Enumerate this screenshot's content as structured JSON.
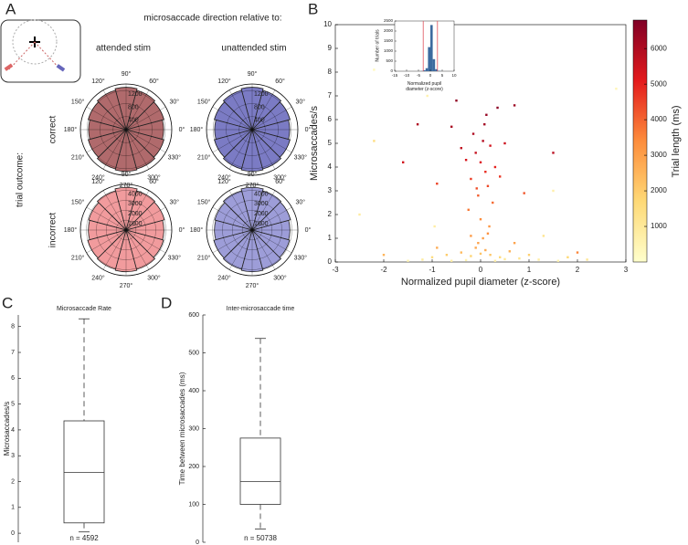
{
  "panel_labels": [
    "A",
    "B",
    "C",
    "D"
  ],
  "panel_a": {
    "header": "microsaccade direction relative to:",
    "columns": [
      "attended stim",
      "unattended stim"
    ],
    "rows": [
      "correct",
      "incorrect"
    ],
    "side_label": "trial outcome:"
  },
  "chart_data": [
    {
      "type": "polar",
      "color": "#b06a6c",
      "theta": [
        0,
        30,
        60,
        90,
        120,
        150,
        180,
        210,
        240,
        270,
        300,
        330
      ],
      "values": [
        1150,
        1200,
        1250,
        1300,
        1250,
        1200,
        1150,
        1200,
        1250,
        1280,
        1250,
        1200
      ],
      "rlim": [
        0,
        1400
      ],
      "rticks": [
        400,
        800,
        1200
      ],
      "thetaticks": [
        {
          "value": 0,
          "label": "0°"
        },
        {
          "value": 30,
          "label": "30°"
        },
        {
          "value": 60,
          "label": "60°"
        },
        {
          "value": 90,
          "label": "90°"
        },
        {
          "value": 120,
          "label": "120°"
        },
        {
          "value": 150,
          "label": "150°"
        },
        {
          "value": 180,
          "label": "180°"
        },
        {
          "value": 210,
          "label": "210°"
        },
        {
          "value": 240,
          "label": "240°"
        },
        {
          "value": 270,
          "label": "270°"
        },
        {
          "value": 300,
          "label": "300°"
        },
        {
          "value": 330,
          "label": "330°"
        }
      ]
    },
    {
      "type": "polar",
      "color": "#7b7bc4",
      "theta": [
        0,
        30,
        60,
        90,
        120,
        150,
        180,
        210,
        240,
        270,
        300,
        330
      ],
      "values": [
        1150,
        1200,
        1250,
        1300,
        1250,
        1200,
        1150,
        1200,
        1250,
        1280,
        1250,
        1200
      ],
      "rlim": [
        0,
        1400
      ],
      "rticks": [
        400,
        800,
        1200
      ],
      "thetaticks": [
        {
          "value": 0,
          "label": "0°"
        },
        {
          "value": 30,
          "label": "30°"
        },
        {
          "value": 60,
          "label": "60°"
        },
        {
          "value": 90,
          "label": "90°"
        },
        {
          "value": 120,
          "label": "120°"
        },
        {
          "value": 150,
          "label": "150°"
        },
        {
          "value": 180,
          "label": "180°"
        },
        {
          "value": 210,
          "label": "210°"
        },
        {
          "value": 240,
          "label": "240°"
        },
        {
          "value": 270,
          "label": "270°"
        },
        {
          "value": 300,
          "label": "300°"
        },
        {
          "value": 330,
          "label": "330°"
        }
      ]
    },
    {
      "type": "polar",
      "color": "#f19b9d",
      "theta": [
        0,
        30,
        60,
        90,
        120,
        150,
        180,
        210,
        240,
        270,
        300,
        330
      ],
      "values": [
        3800,
        4000,
        4100,
        4300,
        4100,
        3900,
        3800,
        4000,
        4100,
        4200,
        4100,
        3900
      ],
      "rlim": [
        0,
        4600
      ],
      "rticks": [
        1000,
        2000,
        3000,
        4000
      ],
      "thetaticks": [
        {
          "value": 0,
          "label": "0°"
        },
        {
          "value": 30,
          "label": "30°"
        },
        {
          "value": 60,
          "label": "60°"
        },
        {
          "value": 90,
          "label": "90°"
        },
        {
          "value": 120,
          "label": "120°"
        },
        {
          "value": 150,
          "label": "150°"
        },
        {
          "value": 180,
          "label": "180°"
        },
        {
          "value": 210,
          "label": "210°"
        },
        {
          "value": 240,
          "label": "240°"
        },
        {
          "value": 270,
          "label": "270°"
        },
        {
          "value": 300,
          "label": "300°"
        },
        {
          "value": 330,
          "label": "330°"
        }
      ]
    },
    {
      "type": "polar",
      "color": "#9d9dd8",
      "theta": [
        0,
        30,
        60,
        90,
        120,
        150,
        180,
        210,
        240,
        270,
        300,
        330
      ],
      "values": [
        3800,
        4000,
        4100,
        4300,
        4100,
        3900,
        3800,
        4000,
        4100,
        4200,
        4100,
        3900
      ],
      "rlim": [
        0,
        4600
      ],
      "rticks": [
        1000,
        2000,
        3000,
        4000
      ],
      "thetaticks": [
        {
          "value": 0,
          "label": "0°"
        },
        {
          "value": 30,
          "label": "30°"
        },
        {
          "value": 60,
          "label": "60°"
        },
        {
          "value": 90,
          "label": "90°"
        },
        {
          "value": 120,
          "label": "120°"
        },
        {
          "value": 150,
          "label": "150°"
        },
        {
          "value": 180,
          "label": "180°"
        },
        {
          "value": 210,
          "label": "210°"
        },
        {
          "value": 240,
          "label": "240°"
        },
        {
          "value": 270,
          "label": "270°"
        },
        {
          "value": 300,
          "label": "300°"
        },
        {
          "value": 330,
          "label": "330°"
        }
      ]
    },
    {
      "type": "scatter",
      "x_label": "Normalized pupil diameter (z-score)",
      "y_label": "Microsaccades/s",
      "colorbar_label": "Trial length (ms)",
      "xlim": [
        -3,
        3
      ],
      "xticks": [
        -3,
        -2,
        -1,
        0,
        1,
        2,
        3
      ],
      "ylim": [
        0,
        10
      ],
      "yticks": [
        0,
        1,
        2,
        3,
        4,
        5,
        6,
        7,
        8,
        9,
        10
      ],
      "clim": [
        0,
        6800
      ],
      "cticks": [
        1000,
        2000,
        3000,
        4000,
        5000,
        6000
      ],
      "colormap": [
        "#ffffcc",
        "#fed976",
        "#fd8d3c",
        "#e31a1c",
        "#800026"
      ],
      "x": [
        0.0,
        0.1,
        -0.1,
        0.05,
        0.15,
        -0.2,
        0.2,
        -0.05,
        0.3,
        -0.3,
        0.08,
        -0.15,
        0.25,
        -0.25,
        0.12,
        -0.08,
        0.0,
        0.18,
        -0.4,
        0.4,
        -0.6,
        0.5,
        -0.9,
        0.7,
        -0.5,
        0.35,
        -1.3,
        1.5,
        -1.6,
        0.9,
        -1.0,
        -0.7,
        -0.4,
        -0.2,
        0.0,
        0.2,
        0.4,
        0.6,
        0.8,
        1.0,
        -1.2,
        1.2,
        -0.1,
        0.1,
        0.3,
        -0.3,
        0.5,
        -0.6,
        1.6,
        -1.5,
        0.05,
        -0.05,
        0.15,
        -0.2,
        2.0,
        1.8,
        2.2,
        -2.0,
        -0.9,
        0.7,
        -2.2,
        2.8,
        -1.1,
        -2.5,
        1.5,
        -0.95,
        1.3,
        -2.2
      ],
      "values": [
        4.2,
        3.8,
        4.6,
        5.1,
        3.2,
        3.5,
        4.9,
        2.8,
        4.0,
        4.3,
        5.8,
        5.4,
        2.5,
        2.2,
        6.2,
        3.1,
        1.8,
        1.5,
        4.8,
        3.6,
        5.7,
        5.0,
        3.3,
        6.6,
        6.8,
        6.5,
        5.8,
        4.6,
        4.2,
        2.9,
        0.2,
        0.3,
        0.4,
        0.25,
        0.35,
        0.3,
        0.2,
        0.45,
        0.15,
        0.3,
        0.1,
        0.1,
        0.6,
        0.5,
        0.05,
        0.08,
        0.12,
        0.05,
        0.05,
        0.05,
        1.0,
        0.8,
        1.2,
        1.1,
        0.4,
        0.2,
        0.1,
        0.3,
        0.6,
        0.8,
        8.1,
        7.3,
        7.0,
        2.0,
        3.0,
        1.5,
        1.1,
        5.1
      ],
      "c": [
        5200,
        4800,
        5600,
        5900,
        4400,
        4600,
        5400,
        4100,
        5000,
        5300,
        6200,
        6000,
        3900,
        3700,
        6400,
        4300,
        3400,
        3200,
        5700,
        4700,
        6100,
        5500,
        4500,
        6300,
        6500,
        6600,
        6000,
        5800,
        5400,
        4200,
        1500,
        2000,
        2400,
        1800,
        2200,
        2100,
        1600,
        2600,
        1200,
        1900,
        900,
        800,
        2800,
        2700,
        700,
        600,
        1000,
        700,
        500,
        500,
        3000,
        2900,
        3300,
        3100,
        3500,
        1700,
        1100,
        2500,
        2700,
        2900,
        300,
        400,
        600,
        900,
        700,
        800,
        1200,
        1500
      ]
    },
    {
      "type": "histogram",
      "x_label": "Normalized pupil diameter (z-score)",
      "y_label": "Number of trials",
      "color": "#3d6a9e",
      "bins": [
        -15,
        -14,
        -13,
        -12,
        -11,
        -10,
        -9,
        -8,
        -7,
        -6,
        -5,
        -4,
        -3,
        -2,
        -1,
        0,
        1,
        2,
        3,
        4,
        5,
        6,
        7,
        8,
        9,
        10
      ],
      "values": [
        0,
        0,
        0,
        0,
        0,
        0,
        0,
        0,
        0,
        0,
        0,
        10,
        50,
        150,
        1200,
        2300,
        600,
        100,
        20,
        5,
        0,
        0,
        0,
        0,
        0
      ],
      "cutoffs": [
        -3,
        3
      ],
      "cutoff_color": "#e0505a",
      "xlim": [
        -15,
        10
      ],
      "xticks": [
        -15,
        -10,
        -5,
        0,
        5,
        10
      ],
      "ylim": [
        0,
        2500
      ],
      "yticks": [
        0,
        500,
        1000,
        1500,
        2000,
        2500
      ]
    },
    {
      "type": "box",
      "title": "Microsaccade Rate",
      "y_label": "Microsaccades/s",
      "note": "n = 4592",
      "whislo": 0.05,
      "q1": 0.4,
      "median": 2.35,
      "q3": 4.35,
      "whishi": 8.3,
      "ylim": [
        -0.35,
        8.45
      ],
      "yticks": [
        0,
        1,
        2,
        3,
        4,
        5,
        6,
        7,
        8
      ]
    },
    {
      "type": "box",
      "title": "Inter-microsaccade time",
      "y_label": "Time between microsaccades (ms)",
      "note": "n = 50738",
      "whislo": 35,
      "q1": 100,
      "median": 160,
      "q3": 275,
      "whishi": 538,
      "ylim": [
        0,
        600
      ],
      "yticks": [
        0,
        100,
        200,
        300,
        400,
        500,
        600
      ]
    }
  ]
}
